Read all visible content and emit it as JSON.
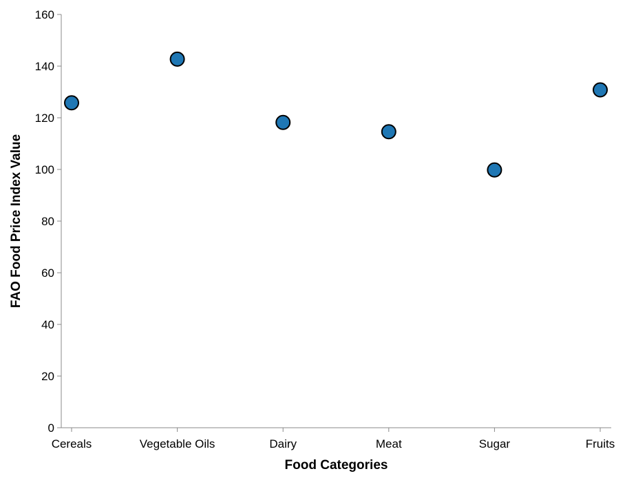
{
  "chart_data": {
    "type": "scatter",
    "categories": [
      "Cereals",
      "Vegetable Oils",
      "Dairy",
      "Meat",
      "Sugar",
      "Fruits"
    ],
    "values": [
      125.8,
      142.7,
      118.2,
      114.6,
      99.8,
      130.8
    ],
    "xlabel": "Food Categories",
    "ylabel": "FAO Food Price Index Value",
    "ylim": [
      0,
      160
    ],
    "yticks": [
      0,
      20,
      40,
      60,
      80,
      100,
      120,
      140,
      160
    ],
    "grid": false,
    "point_color": "#1f77b4",
    "point_stroke": "#000000"
  }
}
